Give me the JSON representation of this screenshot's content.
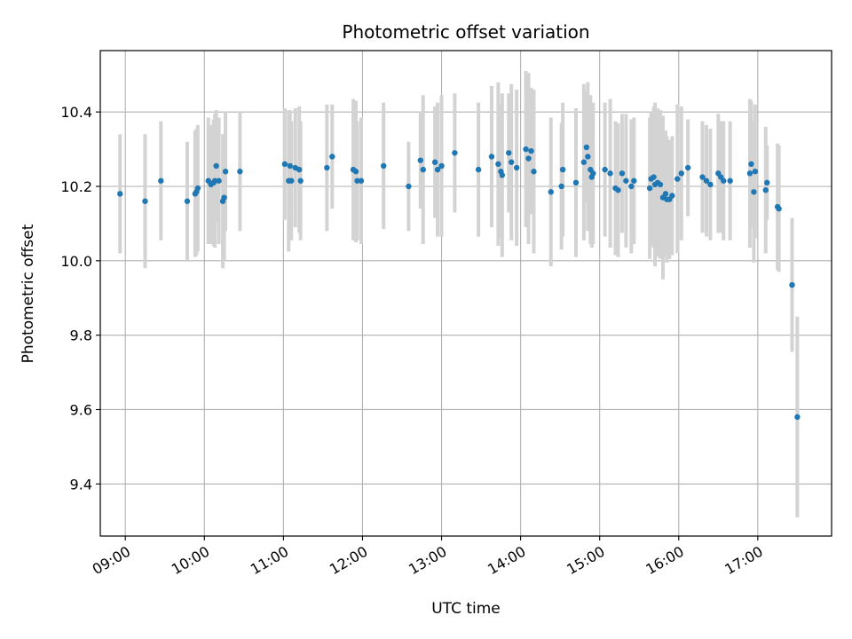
{
  "chart_data": {
    "type": "scatter",
    "title": "Photometric offset variation",
    "xlabel": "UTC time",
    "ylabel": "Photometric offset",
    "x_tick_labels": [
      "09:00",
      "10:00",
      "11:00",
      "12:00",
      "13:00",
      "14:00",
      "15:00",
      "16:00",
      "17:00"
    ],
    "y_tick_labels": [
      "9.4",
      "9.6",
      "9.8",
      "10.0",
      "10.2",
      "10.4"
    ],
    "y_ticks": [
      9.4,
      9.6,
      9.8,
      10.0,
      10.2,
      10.4
    ],
    "xlim": [
      "08:41",
      "17:56"
    ],
    "ylim": [
      9.26,
      10.565
    ],
    "grid": true,
    "colors": {
      "points": "#1f77b4",
      "errorbars": "#d3d3d3",
      "grid": "#b0b0b0"
    },
    "series": [
      {
        "x": [
          "08:56",
          "09:15",
          "09:27",
          "09:47",
          "09:53",
          "09:54",
          "09:55",
          "10:03",
          "10:05",
          "10:07",
          "10:08",
          "10:09",
          "10:11",
          "10:14",
          "10:15",
          "10:16",
          "10:27",
          "11:01",
          "11:04",
          "11:05",
          "11:06",
          "11:09",
          "11:12",
          "11:13",
          "11:33",
          "11:37",
          "11:53",
          "11:55",
          "11:56",
          "11:59",
          "12:16",
          "12:35",
          "12:44",
          "12:46",
          "12:55",
          "12:57",
          "13:00",
          "13:10",
          "13:28",
          "13:38",
          "13:43",
          "13:45",
          "13:46",
          "13:51",
          "13:53",
          "13:57",
          "14:04",
          "14:06",
          "14:08",
          "14:10",
          "14:23",
          "14:31",
          "14:32",
          "14:42",
          "14:48",
          "14:50",
          "14:51",
          "14:53",
          "14:54",
          "14:55",
          "15:04",
          "15:08",
          "15:12",
          "15:14",
          "15:17",
          "15:20",
          "15:24",
          "15:26",
          "15:38",
          "15:39",
          "15:41",
          "15:42",
          "15:44",
          "15:46",
          "15:48",
          "15:50",
          "15:51",
          "15:53",
          "15:55",
          "15:59",
          "16:02",
          "16:07",
          "16:18",
          "16:21",
          "16:24",
          "16:30",
          "16:32",
          "16:34",
          "16:39",
          "16:54",
          "16:55",
          "16:57",
          "16:58",
          "17:06",
          "17:07",
          "17:15",
          "17:16",
          "17:26",
          "17:30"
        ],
        "y": [
          10.18,
          10.16,
          10.215,
          10.16,
          10.18,
          10.185,
          10.195,
          10.215,
          10.205,
          10.21,
          10.215,
          10.255,
          10.215,
          10.16,
          10.17,
          10.24,
          10.24,
          10.26,
          10.215,
          10.255,
          10.215,
          10.25,
          10.245,
          10.215,
          10.25,
          10.28,
          10.245,
          10.24,
          10.215,
          10.215,
          10.255,
          10.2,
          10.27,
          10.245,
          10.265,
          10.245,
          10.255,
          10.29,
          10.245,
          10.28,
          10.26,
          10.24,
          10.23,
          10.29,
          10.265,
          10.25,
          10.3,
          10.275,
          10.295,
          10.24,
          10.185,
          10.2,
          10.245,
          10.21,
          10.265,
          10.305,
          10.28,
          10.245,
          10.225,
          10.235,
          10.245,
          10.235,
          10.195,
          10.19,
          10.235,
          10.215,
          10.2,
          10.215,
          10.195,
          10.22,
          10.225,
          10.205,
          10.21,
          10.205,
          10.17,
          10.18,
          10.165,
          10.165,
          10.175,
          10.22,
          10.235,
          10.25,
          10.225,
          10.215,
          10.205,
          10.235,
          10.225,
          10.215,
          10.215,
          10.235,
          10.26,
          10.185,
          10.24,
          10.19,
          10.21,
          10.145,
          10.14,
          9.935,
          9.58
        ],
        "err": [
          0.16,
          0.18,
          0.16,
          0.16,
          0.17,
          0.17,
          0.17,
          0.17,
          0.16,
          0.17,
          0.18,
          0.15,
          0.17,
          0.18,
          0.17,
          0.16,
          0.16,
          0.15,
          0.19,
          0.15,
          0.16,
          0.16,
          0.17,
          0.16,
          0.17,
          0.14,
          0.19,
          0.19,
          0.16,
          0.17,
          0.17,
          0.12,
          0.13,
          0.2,
          0.15,
          0.18,
          0.19,
          0.16,
          0.18,
          0.19,
          0.22,
          0.18,
          0.22,
          0.16,
          0.21,
          0.21,
          0.21,
          0.23,
          0.17,
          0.22,
          0.2,
          0.17,
          0.18,
          0.2,
          0.21,
          0.15,
          0.2,
          0.2,
          0.19,
          0.19,
          0.18,
          0.2,
          0.18,
          0.18,
          0.16,
          0.18,
          0.18,
          0.17,
          0.19,
          0.18,
          0.19,
          0.22,
          0.2,
          0.2,
          0.22,
          0.17,
          0.17,
          0.16,
          0.16,
          0.2,
          0.18,
          0.13,
          0.15,
          0.15,
          0.15,
          0.16,
          0.15,
          0.16,
          0.16,
          0.2,
          0.17,
          0.19,
          0.18,
          0.17,
          0.1,
          0.17,
          0.17,
          0.18,
          0.27
        ]
      }
    ]
  }
}
